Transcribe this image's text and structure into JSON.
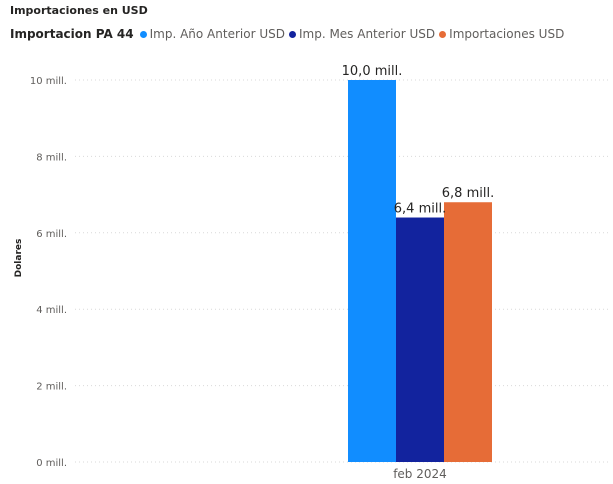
{
  "chart_data": {
    "type": "bar",
    "title": "Importaciones en USD",
    "legend_title": "Importacion PA 44",
    "categories": [
      "feb 2024"
    ],
    "series": [
      {
        "name": "Imp. Año Anterior USD",
        "values": [
          10.0
        ],
        "color": "#118dff",
        "label": "10,0 mill."
      },
      {
        "name": "Imp. Mes Anterior USD",
        "values": [
          6.4
        ],
        "color": "#12239e",
        "label": "6,4 mill."
      },
      {
        "name": "Importaciones USD",
        "values": [
          6.8
        ],
        "color": "#e66c37",
        "label": "6,8 mill."
      }
    ],
    "ylabel": "Dolares",
    "ylim": [
      0,
      10
    ],
    "yticks": [
      {
        "value": 0,
        "label": "0 mill."
      },
      {
        "value": 2,
        "label": "2 mill."
      },
      {
        "value": 4,
        "label": "4 mill."
      },
      {
        "value": 6,
        "label": "6 mill."
      },
      {
        "value": 8,
        "label": "8 mill."
      },
      {
        "value": 10,
        "label": "10 mill."
      }
    ],
    "grid": true,
    "legend_position": "top-left"
  }
}
